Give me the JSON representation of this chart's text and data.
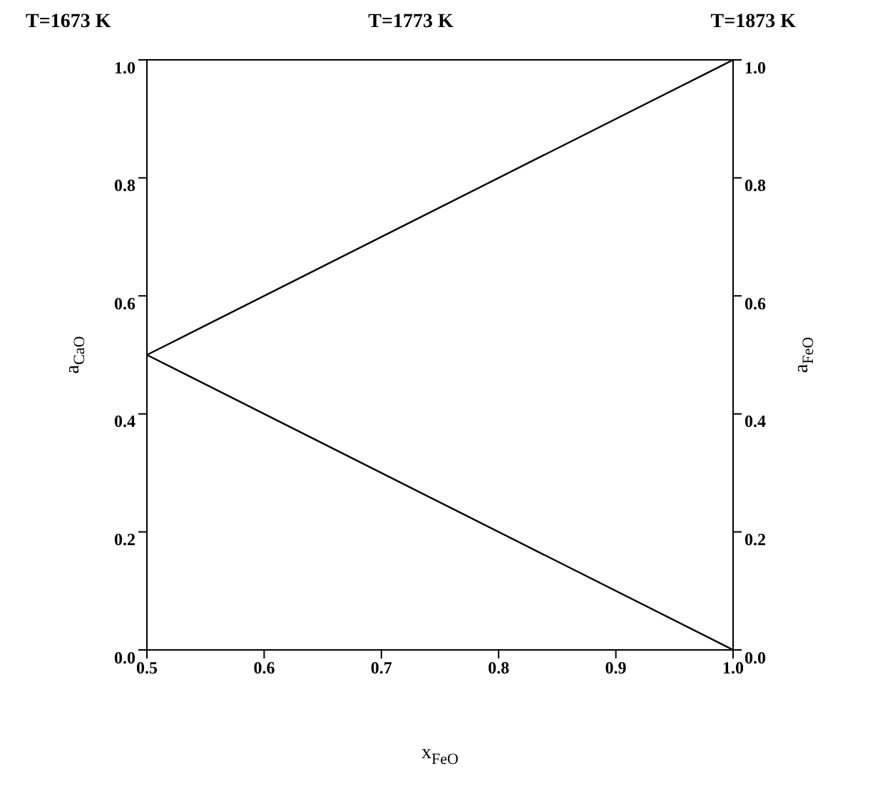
{
  "chart_data": {
    "type": "line",
    "annotations": [
      "T=1673 K",
      "T=1773 K",
      "T=1873 K"
    ],
    "xlabel": "x$_{FeO}$",
    "ylabel": "a$_{CaO}$",
    "y2label": "a$_{FeO}$",
    "x": [
      0.5,
      1.0
    ],
    "series": [
      {
        "color": "#000000",
        "values": [
          0.5,
          0.0
        ]
      },
      {
        "color": "#000000",
        "values": [
          0.5,
          1.0
        ],
        "axis": "y2"
      }
    ],
    "xlim": [
      0.5,
      1.0
    ],
    "xticks": [
      0.5,
      0.6,
      0.7,
      0.8,
      0.9,
      {
        "value": 1.0,
        "label": "1.0"
      }
    ],
    "ylim": [
      0,
      1
    ],
    "yticks": [
      {
        "value": 0,
        "label": "0.0"
      },
      0.2,
      0.4,
      0.6,
      0.8,
      {
        "value": 1,
        "label": "1.0"
      }
    ],
    "y2lim": [
      0,
      1
    ],
    "y2ticks": [
      {
        "value": 0,
        "label": "0.0"
      },
      0.2,
      0.4,
      0.6,
      0.8,
      {
        "value": 1,
        "label": "1.0"
      }
    ],
    "grid": false,
    "marker": "none",
    "line_style": "solid"
  }
}
